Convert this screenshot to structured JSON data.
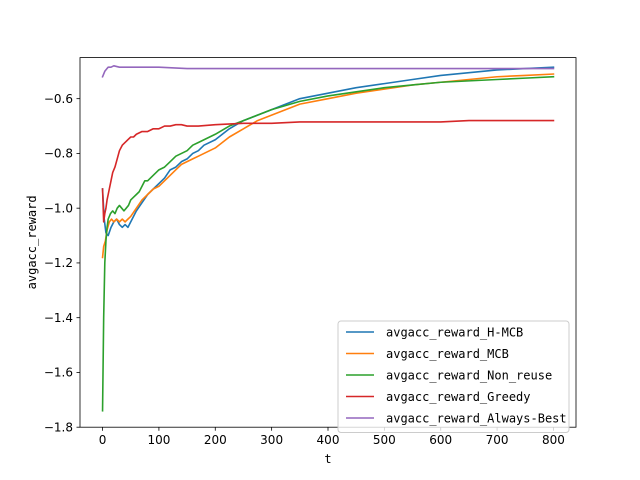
{
  "chart_data": {
    "type": "line",
    "xlabel": "t",
    "ylabel": "avgacc_reward",
    "xlim": [
      -40,
      840
    ],
    "ylim": [
      -1.8,
      -0.45
    ],
    "xticks": [
      0,
      100,
      200,
      300,
      400,
      500,
      600,
      700,
      800
    ],
    "yticks": [
      -1.8,
      -1.6,
      -1.4,
      -1.2,
      -1.0,
      -0.8,
      -0.6
    ],
    "xtick_labels": [
      "0",
      "100",
      "200",
      "300",
      "400",
      "500",
      "600",
      "700",
      "800"
    ],
    "ytick_labels": [
      "−1.8",
      "−1.6",
      "−1.4",
      "−1.2",
      "−1.0",
      "−0.8",
      "−0.6"
    ],
    "grid": false,
    "legend_position": "lower-right",
    "series": [
      {
        "name": "avgacc_reward_H-MCB",
        "color": "#1f77b4",
        "x": [
          0,
          3,
          6,
          10,
          15,
          20,
          25,
          30,
          35,
          40,
          45,
          50,
          60,
          70,
          80,
          90,
          100,
          110,
          120,
          130,
          140,
          150,
          160,
          170,
          180,
          200,
          225,
          250,
          275,
          300,
          350,
          400,
          450,
          500,
          550,
          600,
          650,
          700,
          750,
          800
        ],
        "y": [
          -0.93,
          -1.04,
          -1.09,
          -1.1,
          -1.07,
          -1.05,
          -1.04,
          -1.06,
          -1.07,
          -1.06,
          -1.07,
          -1.05,
          -1.01,
          -0.98,
          -0.95,
          -0.93,
          -0.91,
          -0.89,
          -0.86,
          -0.85,
          -0.83,
          -0.82,
          -0.8,
          -0.79,
          -0.77,
          -0.75,
          -0.71,
          -0.68,
          -0.66,
          -0.64,
          -0.6,
          -0.58,
          -0.56,
          -0.545,
          -0.53,
          -0.515,
          -0.505,
          -0.495,
          -0.49,
          -0.485
        ]
      },
      {
        "name": "avgacc_reward_MCB",
        "color": "#ff7f0e",
        "x": [
          0,
          2,
          5,
          8,
          12,
          16,
          20,
          25,
          30,
          35,
          40,
          45,
          50,
          60,
          70,
          80,
          90,
          100,
          110,
          120,
          130,
          140,
          150,
          160,
          170,
          180,
          200,
          225,
          250,
          275,
          300,
          350,
          400,
          450,
          500,
          550,
          600,
          650,
          700,
          750,
          800
        ],
        "y": [
          -1.18,
          -1.14,
          -1.12,
          -1.08,
          -1.05,
          -1.04,
          -1.05,
          -1.04,
          -1.05,
          -1.04,
          -1.05,
          -1.04,
          -1.03,
          -1.0,
          -0.97,
          -0.95,
          -0.93,
          -0.92,
          -0.9,
          -0.88,
          -0.86,
          -0.84,
          -0.83,
          -0.82,
          -0.81,
          -0.8,
          -0.78,
          -0.74,
          -0.71,
          -0.68,
          -0.66,
          -0.62,
          -0.6,
          -0.58,
          -0.565,
          -0.55,
          -0.54,
          -0.53,
          -0.52,
          -0.515,
          -0.51
        ]
      },
      {
        "name": "avgacc_reward_Non_reuse",
        "color": "#2ca02c",
        "x": [
          0,
          2,
          4,
          6,
          8,
          10,
          14,
          18,
          22,
          26,
          30,
          34,
          38,
          42,
          46,
          50,
          55,
          60,
          65,
          70,
          75,
          80,
          90,
          100,
          110,
          120,
          130,
          140,
          150,
          160,
          170,
          180,
          200,
          225,
          250,
          275,
          300,
          350,
          400,
          450,
          500,
          550,
          600,
          650,
          700,
          750,
          800
        ],
        "y": [
          -1.74,
          -1.4,
          -1.2,
          -1.12,
          -1.07,
          -1.04,
          -1.02,
          -1.01,
          -1.02,
          -1.0,
          -0.99,
          -1.0,
          -1.01,
          -1.0,
          -0.99,
          -0.97,
          -0.96,
          -0.95,
          -0.94,
          -0.92,
          -0.9,
          -0.9,
          -0.88,
          -0.86,
          -0.85,
          -0.83,
          -0.81,
          -0.8,
          -0.79,
          -0.77,
          -0.76,
          -0.75,
          -0.73,
          -0.7,
          -0.68,
          -0.66,
          -0.64,
          -0.61,
          -0.59,
          -0.575,
          -0.56,
          -0.55,
          -0.54,
          -0.535,
          -0.53,
          -0.525,
          -0.52
        ]
      },
      {
        "name": "avgacc_reward_Greedy",
        "color": "#d62728",
        "x": [
          0,
          2,
          4,
          6,
          8,
          10,
          12,
          15,
          18,
          22,
          26,
          30,
          35,
          40,
          45,
          50,
          55,
          60,
          70,
          80,
          90,
          100,
          110,
          120,
          130,
          140,
          150,
          170,
          200,
          250,
          300,
          350,
          400,
          450,
          500,
          550,
          600,
          650,
          700,
          750,
          800
        ],
        "y": [
          -0.93,
          -1.05,
          -1.02,
          -1.0,
          -0.97,
          -0.95,
          -0.93,
          -0.9,
          -0.87,
          -0.85,
          -0.82,
          -0.79,
          -0.77,
          -0.76,
          -0.75,
          -0.74,
          -0.74,
          -0.73,
          -0.72,
          -0.72,
          -0.71,
          -0.71,
          -0.7,
          -0.7,
          -0.695,
          -0.695,
          -0.7,
          -0.7,
          -0.695,
          -0.69,
          -0.69,
          -0.685,
          -0.685,
          -0.685,
          -0.685,
          -0.685,
          -0.685,
          -0.68,
          -0.68,
          -0.68,
          -0.68
        ]
      },
      {
        "name": "avgacc_reward_Always-Best",
        "color": "#9467bd",
        "x": [
          0,
          2,
          4,
          6,
          8,
          10,
          15,
          20,
          30,
          40,
          60,
          80,
          100,
          150,
          200,
          300,
          400,
          500,
          600,
          700,
          800
        ],
        "y": [
          -0.52,
          -0.51,
          -0.5,
          -0.495,
          -0.49,
          -0.485,
          -0.485,
          -0.48,
          -0.485,
          -0.485,
          -0.485,
          -0.485,
          -0.485,
          -0.49,
          -0.49,
          -0.49,
          -0.49,
          -0.49,
          -0.49,
          -0.49,
          -0.49
        ]
      }
    ]
  }
}
